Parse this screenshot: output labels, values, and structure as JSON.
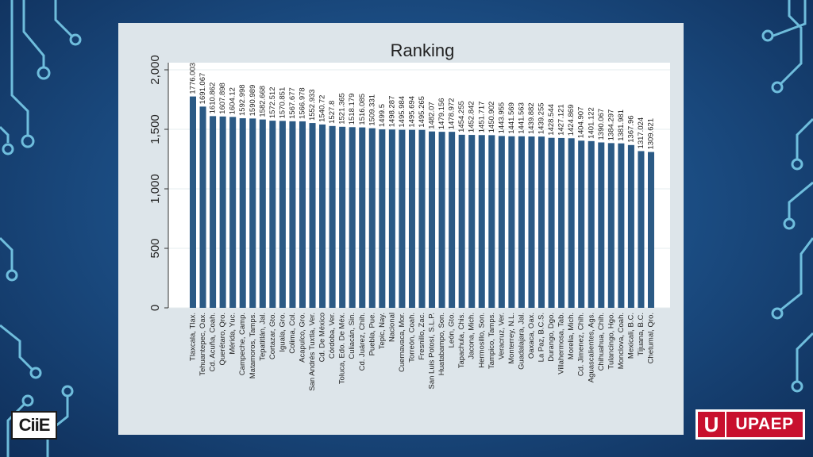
{
  "logos": {
    "left": "CiiE",
    "right_mark": "U",
    "right_word": "UPAEP"
  },
  "colors": {
    "bar": "#2b5a85",
    "plot_bg": "#ffffff",
    "panel_bg": "#dde5ea"
  },
  "chart_data": {
    "type": "bar",
    "title": "Ranking",
    "xlabel": "",
    "ylabel": "",
    "ylim": [
      0,
      2000
    ],
    "yticks": [
      0,
      500,
      1000,
      1500,
      2000
    ],
    "ytick_labels": [
      "0",
      "500",
      "1,000",
      "1,500",
      "2,000"
    ],
    "grid": true,
    "categories": [
      "Tlaxcala, Tlax.",
      "Tehuantepec, Oax.",
      "Cd. Acuña, Coah.",
      "Querétaro, Qro.",
      "Mérida, Yuc.",
      "Campeche, Camp.",
      "Matamoros, Tamps.",
      "Tepatitlán, Jal.",
      "Cortazar, Gto.",
      "Iguala, Gro.",
      "Colima, Col.",
      "Acapulco, Gro.",
      "San Andrés Tuxtla, Ver.",
      "Cd. De México",
      "Córdoba, Ver.",
      "Toluca, Edo. De Méx.",
      "Culiacán, Sin.",
      "Cd. Juárez, Chih.",
      "Puebla, Pue.",
      "Tepic, Nay.",
      "Nacional",
      "Cuernavaca, Mor.",
      "Torreón, Coah.",
      "Fresnillo, Zac.",
      "San Luis Potosí, S.L.P.",
      "Huatabampo, Son.",
      "León, Gto.",
      "Tapachula, Chis.",
      "Jacona, Mich.",
      "Hermosillo, Son.",
      "Tampico, Tamps.",
      "Veracruz, Ver.",
      "Monterrey, N.L.",
      "Guadalajara, Jal.",
      "Oaxaca, Oax.",
      "La Paz, B.C.S.",
      "Durango, Dgo.",
      "Villahermosa, Tab.",
      "Morelia, Mich.",
      "Cd. Jimenez, Chih.",
      "Aguascalientes, Ags.",
      "Chihuahua, Chih.",
      "Tulancingo, Hgo.",
      "Monclova, Coah.",
      "Mexicali, B.C.",
      "Tijuana, B.C.",
      "Chetumal, Qro."
    ],
    "values": [
      1776.003,
      1691.067,
      1610.862,
      1607.898,
      1604.12,
      1592.998,
      1590.989,
      1582.668,
      1572.512,
      1570.851,
      1567.677,
      1566.978,
      1552.933,
      1540.72,
      1527.8,
      1521.365,
      1518.179,
      1516.085,
      1509.331,
      1499.5,
      1498.287,
      1495.984,
      1495.694,
      1495.265,
      1482.07,
      1479.156,
      1478.972,
      1454.255,
      1452.842,
      1451.717,
      1450.902,
      1443.955,
      1441.569,
      1441.563,
      1439.882,
      1439.255,
      1428.544,
      1427.121,
      1424.869,
      1404.907,
      1401.122,
      1390.067,
      1384.297,
      1381.981,
      1367.96,
      1317.024,
      1309.621
    ],
    "value_labels": [
      "1776.003",
      "1691.067",
      "1610.862",
      "1607.898",
      "1604.12",
      "1592.998",
      "1590.989",
      "1582.668",
      "1572.512",
      "1570.851",
      "1567.677",
      "1566.978",
      "1552.933",
      "1540.72",
      "1527.8",
      "1521.365",
      "1518.179",
      "1516.085",
      "1509.331",
      "1499.5",
      "1498.287",
      "1495.984",
      "1495.694",
      "1495.265",
      "1482.07",
      "1479.156",
      "1478.972",
      "1454.255",
      "1452.842",
      "1451.717",
      "1450.902",
      "1443.955",
      "1441.569",
      "1441.563",
      "1439.882",
      "1439.255",
      "1428.544",
      "1427.121",
      "1424.869",
      "1404.907",
      "1401.122",
      "1390.067",
      "1384.297",
      "1381.981",
      "1367.96",
      "1317.024",
      "1309.621"
    ]
  }
}
